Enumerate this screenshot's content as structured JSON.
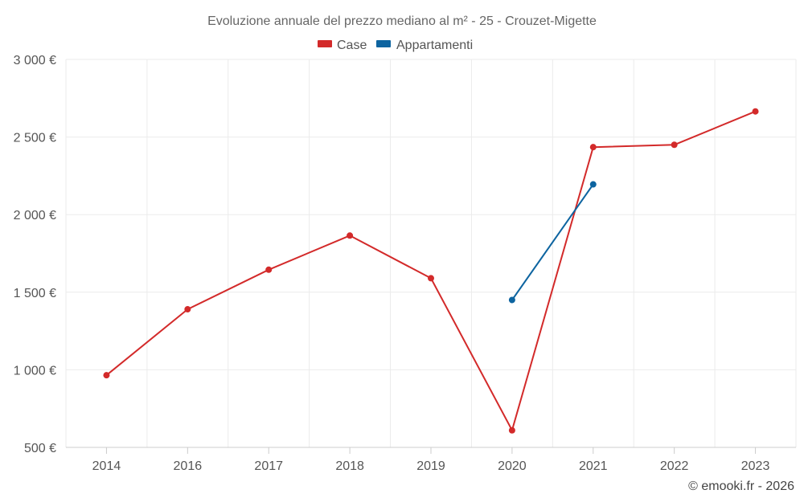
{
  "chart_data": {
    "type": "line",
    "title": "Evoluzione annuale del prezzo mediano al m² - 25 - Crouzet-Migette",
    "categories": [
      "2014",
      "2016",
      "2017",
      "2018",
      "2019",
      "2020",
      "2021",
      "2022",
      "2023"
    ],
    "y_ticks": [
      500,
      1000,
      1500,
      2000,
      2500,
      3000
    ],
    "y_tick_labels": [
      "500 €",
      "1 000 €",
      "1 500 €",
      "2 000 €",
      "2 500 €",
      "3 000 €"
    ],
    "ylim": [
      500,
      3000
    ],
    "grid": true,
    "legend_position": "top",
    "series": [
      {
        "name": "Case",
        "color": "#d32a2a",
        "values": [
          965,
          1390,
          1645,
          1865,
          1590,
          610,
          2435,
          2450,
          2665
        ]
      },
      {
        "name": "Appartamenti",
        "color": "#0d64a0",
        "values": [
          null,
          null,
          null,
          null,
          null,
          1450,
          2195,
          null,
          null
        ]
      }
    ]
  },
  "credit": "© emooki.fr - 2026"
}
